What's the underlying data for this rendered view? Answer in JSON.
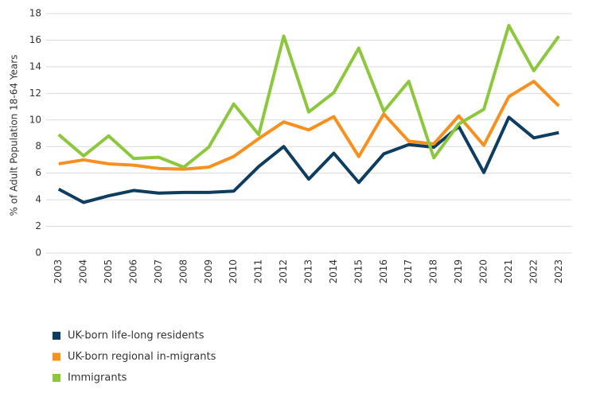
{
  "chart_data": {
    "type": "line",
    "y_label": "% of Adult Population 18-64 Years",
    "categories": [
      "2003",
      "2004",
      "2005",
      "2006",
      "2007",
      "2008",
      "2009",
      "2010",
      "2011",
      "2012",
      "2013",
      "2014",
      "2015",
      "2016",
      "2017",
      "2018",
      "2019",
      "2020",
      "2021",
      "2022",
      "2023"
    ],
    "series": [
      {
        "name": "UK-born life-long residents",
        "color": "#0e3d5f",
        "values": [
          4.8,
          3.8,
          4.3,
          4.7,
          4.5,
          4.55,
          4.55,
          4.65,
          6.5,
          8.0,
          5.55,
          7.5,
          5.3,
          7.45,
          8.15,
          7.95,
          9.5,
          6.05,
          10.2,
          8.65,
          9.05
        ]
      },
      {
        "name": "UK-born regional in-migrants",
        "color": "#f7901e",
        "values": [
          6.7,
          7.0,
          6.7,
          6.6,
          6.35,
          6.3,
          6.45,
          7.25,
          8.6,
          9.85,
          9.25,
          10.25,
          7.25,
          10.45,
          8.4,
          8.2,
          10.3,
          8.1,
          11.75,
          12.9,
          11.05
        ]
      },
      {
        "name": "Immigrants",
        "color": "#8dc63f",
        "values": [
          8.9,
          7.3,
          8.8,
          7.1,
          7.2,
          6.45,
          7.95,
          11.2,
          8.9,
          16.3,
          10.6,
          12.05,
          15.4,
          10.65,
          12.9,
          7.15,
          9.7,
          10.8,
          17.1,
          13.7,
          16.3
        ]
      }
    ],
    "ylim": [
      0,
      18
    ],
    "yticks": [
      0,
      2,
      4,
      6,
      8,
      10,
      12,
      14,
      16,
      18
    ],
    "grid": true
  }
}
